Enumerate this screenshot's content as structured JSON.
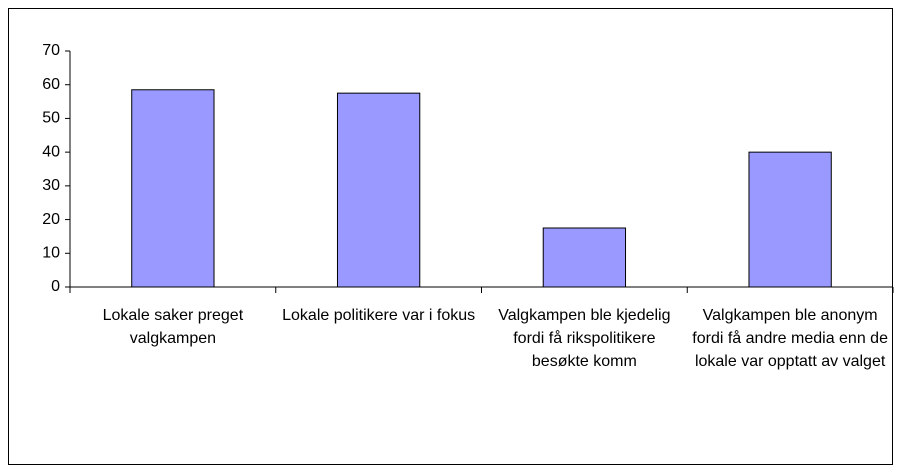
{
  "chart_data": {
    "type": "bar",
    "categories": [
      "Lokale saker preget valgkampen",
      "Lokale politikere var i fokus",
      "Valgkampen ble kjedelig fordi få rikspolitikere besøkte komm",
      "Valgkampen ble anonym fordi få andre media enn de lokale var opptatt av valget"
    ],
    "values": [
      58.5,
      57.5,
      17.5,
      40
    ],
    "color": "#9999ff",
    "ylim": [
      0,
      70
    ],
    "yticks": [
      0,
      10,
      20,
      30,
      40,
      50,
      60,
      70
    ],
    "grid": false
  }
}
